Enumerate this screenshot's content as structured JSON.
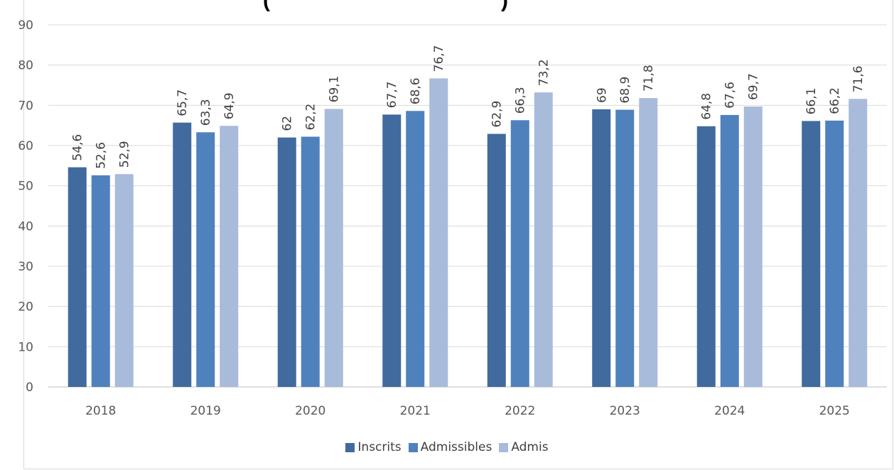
{
  "chart_data": {
    "type": "bar",
    "title_fragment_left": "(",
    "title_fragment_right": ")",
    "categories": [
      "2018",
      "2019",
      "2020",
      "2021",
      "2022",
      "2023",
      "2024",
      "2025"
    ],
    "series": [
      {
        "name": "Inscrits",
        "color": "#416a9f",
        "values": [
          54.6,
          65.7,
          62,
          67.7,
          62.9,
          69,
          64.8,
          66.1
        ],
        "labels": [
          "54,6",
          "65,7",
          "62",
          "67,7",
          "62,9",
          "69",
          "64,8",
          "66,1"
        ]
      },
      {
        "name": "Admissibles",
        "color": "#4f81bd",
        "values": [
          52.6,
          63.3,
          62.2,
          68.6,
          66.3,
          68.9,
          67.6,
          66.2
        ],
        "labels": [
          "52,6",
          "63,3",
          "62,2",
          "68,6",
          "66,3",
          "68,9",
          "67,6",
          "66,2"
        ]
      },
      {
        "name": "Admis",
        "color": "#a9bbdb",
        "values": [
          52.9,
          64.9,
          69.1,
          76.7,
          73.2,
          71.8,
          69.7,
          71.6
        ],
        "labels": [
          "52,9",
          "64,9",
          "69,1",
          "76,7",
          "73,2",
          "71,8",
          "69,7",
          "71,6"
        ]
      }
    ],
    "ylim": [
      0,
      90
    ],
    "yticks": [
      "0",
      "10",
      "20",
      "30",
      "40",
      "50",
      "60",
      "70",
      "80",
      "90"
    ],
    "grid": true,
    "legend_position": "bottom"
  }
}
